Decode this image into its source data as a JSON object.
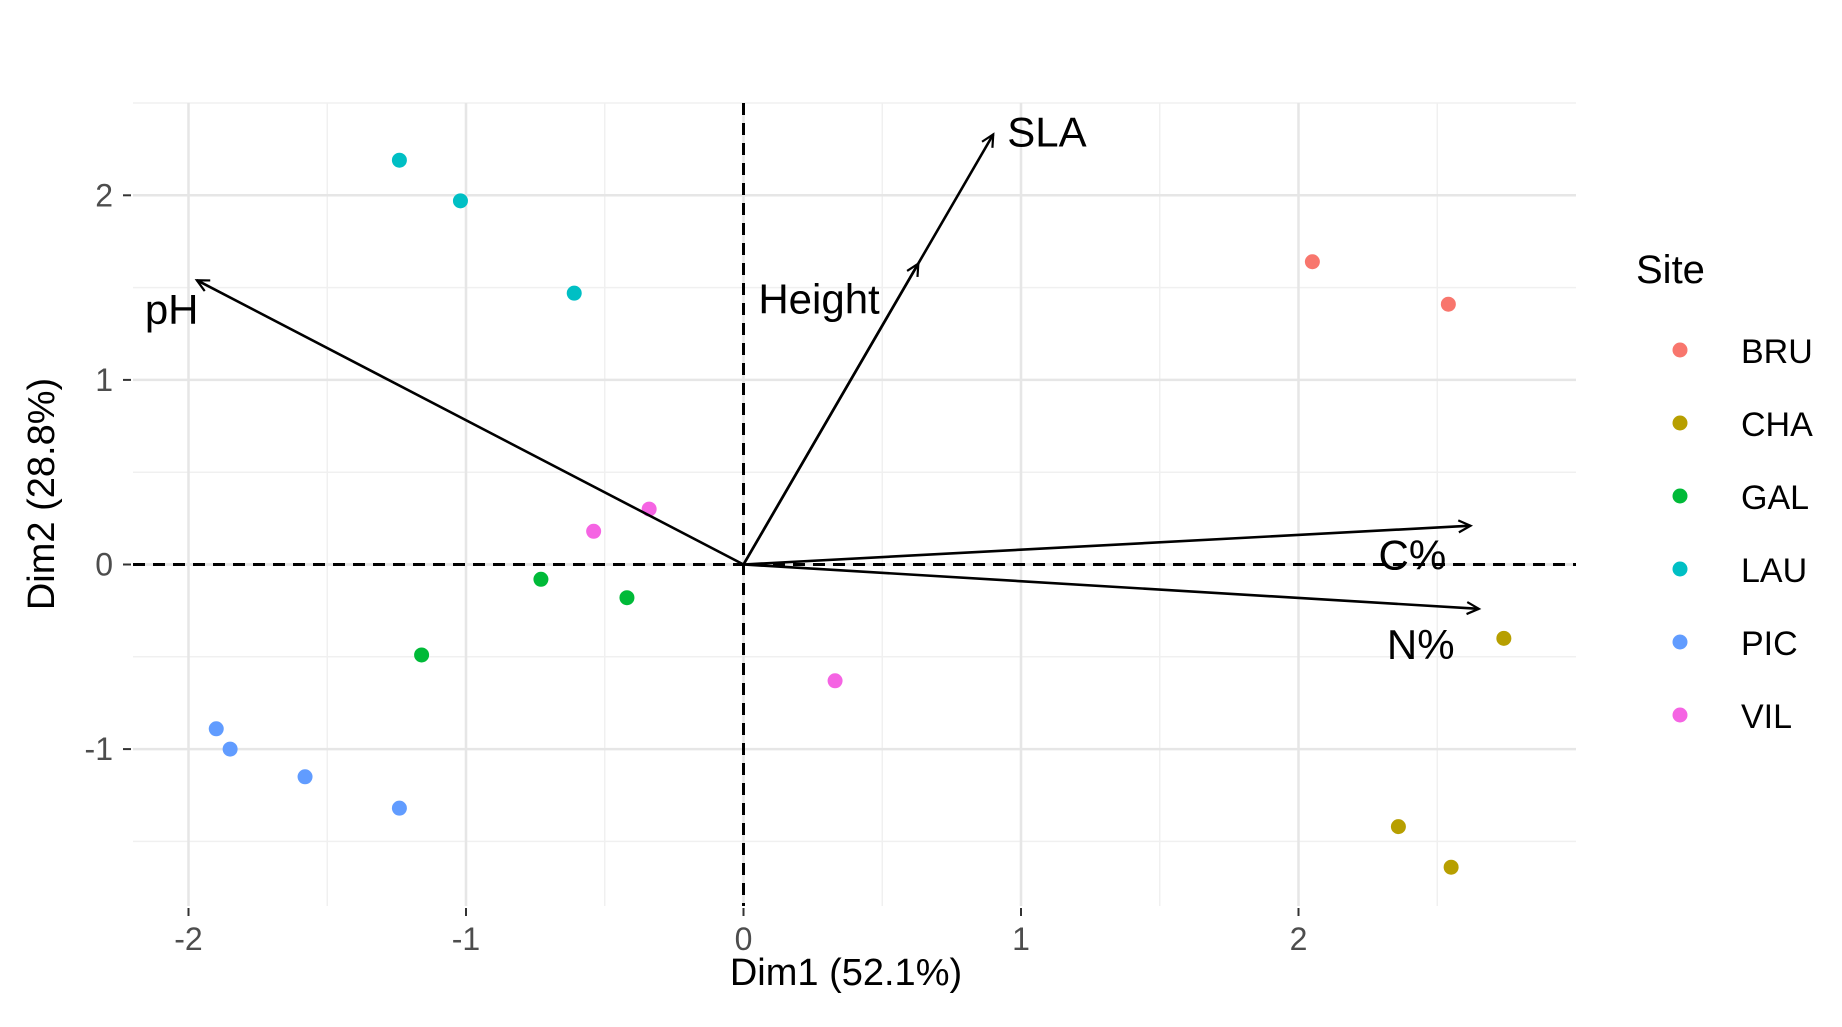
{
  "chart_data": {
    "type": "scatter",
    "subtype": "pca-biplot",
    "xlabel": "Dim1 (52.1%)",
    "ylabel": "Dim2 (28.8%)",
    "xlim": [
      -2.2,
      3.0
    ],
    "ylim": [
      -1.85,
      2.5
    ],
    "x_ticks": [
      -2,
      -1,
      0,
      1,
      2
    ],
    "x_tick_labels": [
      "-2",
      "-1",
      "0",
      "1",
      "2"
    ],
    "y_ticks": [
      -1,
      0,
      1,
      2
    ],
    "y_tick_labels": [
      "-1",
      "0",
      "1",
      "2"
    ],
    "grid": true,
    "reference_lines": {
      "x": 0,
      "y": 0,
      "style": "dashed"
    },
    "legend": {
      "title": "Site",
      "placement": "right",
      "entries": [
        {
          "name": "BRU",
          "color": "#F8766D"
        },
        {
          "name": "CHA",
          "color": "#B79F00"
        },
        {
          "name": "GAL",
          "color": "#00BA38"
        },
        {
          "name": "LAU",
          "color": "#00BFC4"
        },
        {
          "name": "PIC",
          "color": "#619CFF"
        },
        {
          "name": "VIL",
          "color": "#F564E3"
        }
      ]
    },
    "series": [
      {
        "name": "BRU",
        "color": "#F8766D",
        "points": [
          [
            2.05,
            1.64
          ],
          [
            2.54,
            1.41
          ]
        ]
      },
      {
        "name": "CHA",
        "color": "#B79F00",
        "points": [
          [
            2.74,
            -0.4
          ],
          [
            2.36,
            -1.42
          ],
          [
            2.55,
            -1.64
          ]
        ]
      },
      {
        "name": "GAL",
        "color": "#00BA38",
        "points": [
          [
            -0.73,
            -0.08
          ],
          [
            -0.42,
            -0.18
          ],
          [
            -1.16,
            -0.49
          ]
        ]
      },
      {
        "name": "LAU",
        "color": "#00BFC4",
        "points": [
          [
            -1.24,
            2.19
          ],
          [
            -1.02,
            1.97
          ],
          [
            -0.61,
            1.47
          ]
        ]
      },
      {
        "name": "PIC",
        "color": "#619CFF",
        "points": [
          [
            -1.9,
            -0.89
          ],
          [
            -1.85,
            -1.0
          ],
          [
            -1.58,
            -1.15
          ],
          [
            -1.24,
            -1.32
          ]
        ]
      },
      {
        "name": "VIL",
        "color": "#F564E3",
        "points": [
          [
            -0.34,
            0.3
          ],
          [
            -0.54,
            0.18
          ],
          [
            0.33,
            -0.63
          ]
        ]
      }
    ],
    "loadings": [
      {
        "name": "SLA",
        "x": 0.9,
        "y": 2.33
      },
      {
        "name": "Height",
        "x": 0.63,
        "y": 1.63
      },
      {
        "name": "pH",
        "x": -1.97,
        "y": 1.54
      },
      {
        "name": "C%",
        "x": 2.62,
        "y": 0.21
      },
      {
        "name": "N%",
        "x": 2.65,
        "y": -0.24
      }
    ]
  }
}
